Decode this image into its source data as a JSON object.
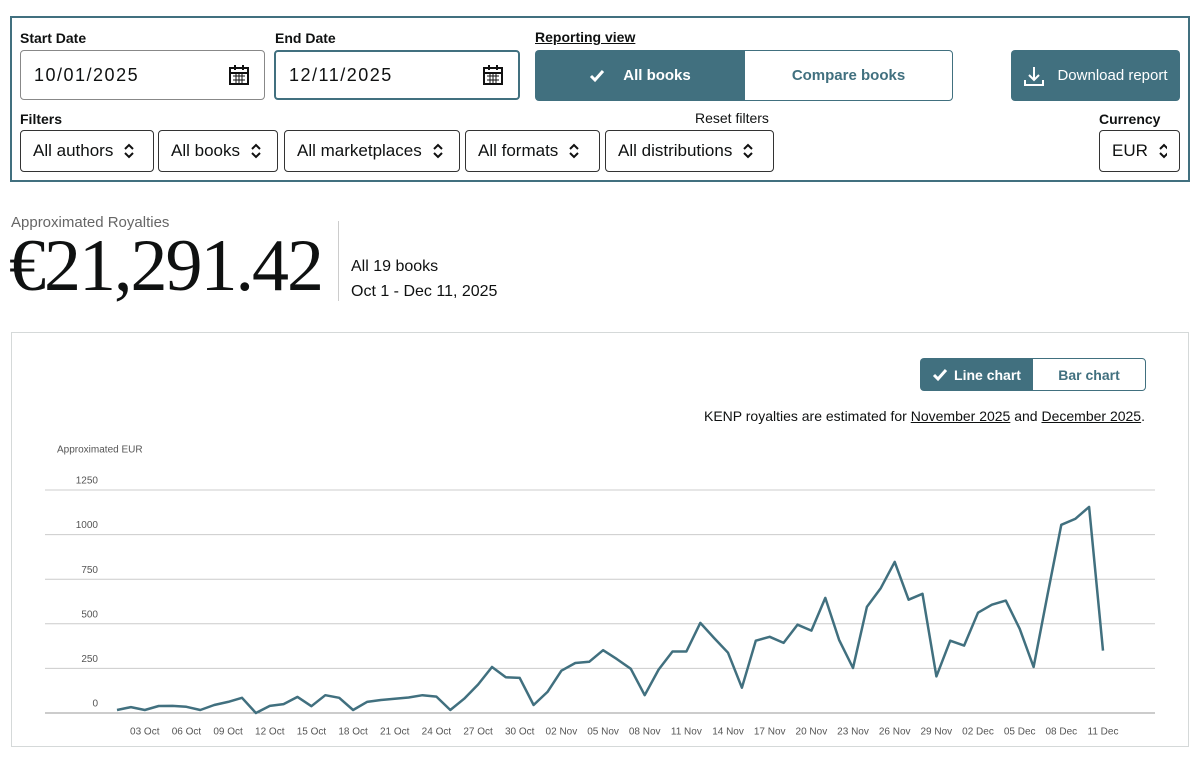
{
  "filters": {
    "start_date_label": "Start Date",
    "start_date": "10/01/2025",
    "end_date_label": "End Date",
    "end_date": "12/11/2025",
    "reporting_view_label": "Reporting view",
    "views": [
      "All books",
      "Compare books"
    ],
    "download": "Download report",
    "filters_label": "Filters",
    "selects": [
      "All authors",
      "All books",
      "All marketplaces",
      "All formats",
      "All distributions"
    ],
    "reset": "Reset filters",
    "currency_label": "Currency",
    "currency": "EUR"
  },
  "summary": {
    "label": "Approximated Royalties",
    "amount": "€21,291.42",
    "books": "All 19 books",
    "period": "Oct 1 - Dec 11, 2025"
  },
  "chart_toggle": [
    "Line chart",
    "Bar chart"
  ],
  "note": {
    "text": "KENP royalties are estimated for",
    "link1": "November 2025",
    "and": "and",
    "link2": "December 2025",
    "end": "."
  },
  "chart_data": {
    "type": "line",
    "y_label": "Approximated EUR",
    "color": "#41707f",
    "categories": [
      null,
      null,
      "03 Oct",
      null,
      null,
      "06 Oct",
      null,
      null,
      "09 Oct",
      null,
      null,
      "12 Oct",
      null,
      null,
      "15 Oct",
      null,
      null,
      "18 Oct",
      null,
      null,
      "21 Oct",
      null,
      null,
      "24 Oct",
      null,
      null,
      "27 Oct",
      null,
      null,
      "30 Oct",
      null,
      null,
      "02 Nov",
      null,
      null,
      "05 Nov",
      null,
      null,
      "08 Nov",
      null,
      null,
      "11 Nov",
      null,
      null,
      "14 Nov",
      null,
      null,
      "17 Nov",
      null,
      null,
      "20 Nov",
      null,
      null,
      "23 Nov",
      null,
      null,
      "26 Nov",
      null,
      null,
      "29 Nov",
      null,
      null,
      "02 Dec",
      null,
      null,
      "05 Dec",
      null,
      null,
      "08 Dec",
      null,
      null,
      "11 Dec"
    ],
    "values": [
      17,
      33,
      17,
      39,
      40,
      35,
      17,
      45,
      62,
      85,
      0,
      40,
      50,
      90,
      38,
      100,
      85,
      17,
      62,
      73,
      80,
      87,
      100,
      92,
      17,
      80,
      160,
      258,
      200,
      197,
      45,
      118,
      237,
      280,
      287,
      352,
      302,
      248,
      100,
      243,
      345,
      345,
      505,
      420,
      338,
      142,
      405,
      427,
      393,
      495,
      462,
      645,
      410,
      252,
      595,
      700,
      847,
      635,
      668,
      205,
      405,
      378,
      562,
      607,
      630,
      472,
      258,
      662,
      1055,
      1088,
      1155,
      350
    ],
    "ylim": [
      0,
      1250
    ],
    "yticks": [
      0,
      250,
      500,
      750,
      1000,
      1250
    ],
    "grid": true
  }
}
